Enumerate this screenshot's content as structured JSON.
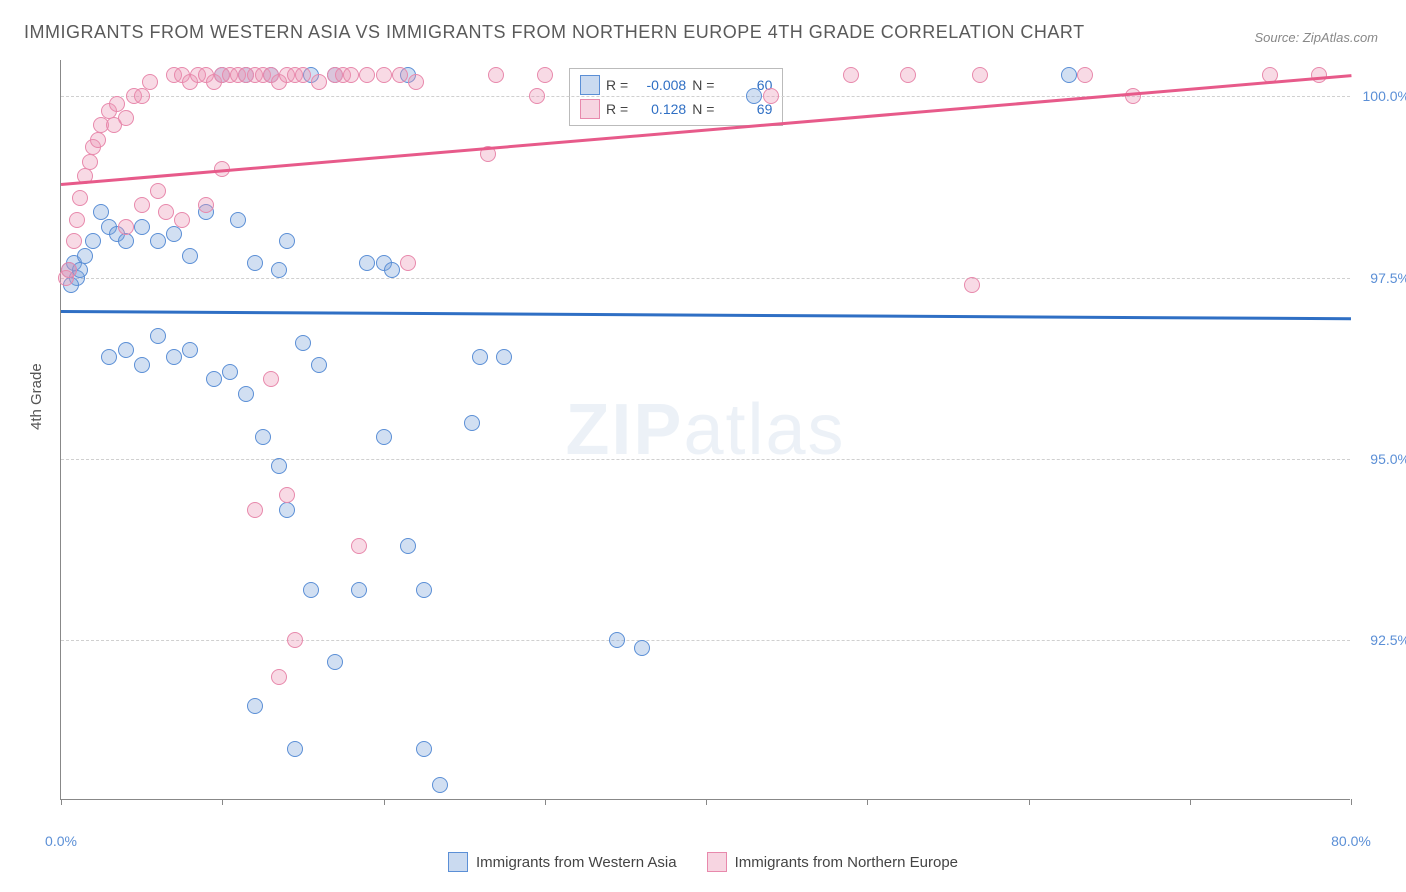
{
  "title": "IMMIGRANTS FROM WESTERN ASIA VS IMMIGRANTS FROM NORTHERN EUROPE 4TH GRADE CORRELATION CHART",
  "source": "Source: ZipAtlas.com",
  "ylabel": "4th Grade",
  "watermark_a": "ZIP",
  "watermark_b": "atlas",
  "chart": {
    "type": "scatter",
    "xlim": [
      0,
      80
    ],
    "ylim": [
      90.3,
      100.5
    ],
    "xticks": [
      0,
      10,
      20,
      30,
      40,
      50,
      60,
      70,
      80
    ],
    "xtick_labels_shown": {
      "0": "0.0%",
      "80": "80.0%"
    },
    "yticks": [
      92.5,
      95.0,
      97.5,
      100.0
    ],
    "ytick_labels": [
      "92.5%",
      "95.0%",
      "97.5%",
      "100.0%"
    ],
    "grid_color": "#d0d0d0",
    "background_color": "#ffffff",
    "marker_size": 16,
    "series": [
      {
        "name": "Immigrants from Western Asia",
        "color": "#5b8fd6",
        "fill": "rgba(123,163,217,0.35)",
        "r": "-0.008",
        "n": "60",
        "trend": {
          "y_at_x0": 97.05,
          "y_at_x80": 96.95
        },
        "points": [
          [
            0.5,
            97.6
          ],
          [
            0.8,
            97.7
          ],
          [
            1.0,
            97.5
          ],
          [
            1.2,
            97.6
          ],
          [
            1.5,
            97.8
          ],
          [
            0.6,
            97.4
          ],
          [
            2.0,
            98.0
          ],
          [
            2.5,
            98.4
          ],
          [
            3.0,
            98.2
          ],
          [
            3.5,
            98.1
          ],
          [
            4.0,
            98.0
          ],
          [
            5.0,
            98.2
          ],
          [
            6.0,
            98.0
          ],
          [
            7.0,
            98.1
          ],
          [
            8.0,
            97.8
          ],
          [
            9.0,
            98.4
          ],
          [
            10.0,
            100.3
          ],
          [
            11.0,
            98.3
          ],
          [
            11.5,
            100.3
          ],
          [
            12.0,
            97.7
          ],
          [
            13.0,
            100.3
          ],
          [
            13.5,
            97.6
          ],
          [
            14.0,
            98.0
          ],
          [
            15.5,
            100.3
          ],
          [
            17.0,
            100.3
          ],
          [
            19.0,
            97.7
          ],
          [
            20.0,
            97.7
          ],
          [
            20.5,
            97.6
          ],
          [
            21.5,
            100.3
          ],
          [
            43.0,
            100.0
          ],
          [
            62.5,
            100.3
          ],
          [
            3.0,
            96.4
          ],
          [
            4.0,
            96.5
          ],
          [
            5.0,
            96.3
          ],
          [
            6.0,
            96.7
          ],
          [
            7.0,
            96.4
          ],
          [
            8.0,
            96.5
          ],
          [
            9.5,
            96.1
          ],
          [
            10.5,
            96.2
          ],
          [
            11.5,
            95.9
          ],
          [
            12.5,
            95.3
          ],
          [
            13.5,
            94.9
          ],
          [
            14.0,
            94.3
          ],
          [
            15.0,
            96.6
          ],
          [
            15.5,
            93.2
          ],
          [
            16.0,
            96.3
          ],
          [
            26.0,
            96.4
          ],
          [
            27.5,
            96.4
          ],
          [
            12.0,
            91.6
          ],
          [
            14.5,
            91.0
          ],
          [
            17.0,
            92.2
          ],
          [
            18.5,
            93.2
          ],
          [
            22.5,
            91.0
          ],
          [
            23.5,
            90.5
          ],
          [
            20.0,
            95.3
          ],
          [
            21.5,
            93.8
          ],
          [
            22.5,
            93.2
          ],
          [
            25.5,
            95.5
          ],
          [
            34.5,
            92.5
          ],
          [
            36.0,
            92.4
          ]
        ]
      },
      {
        "name": "Immigrants from Northern Europe",
        "color": "#e889ac",
        "fill": "rgba(236,150,180,0.35)",
        "r": "0.128",
        "n": "69",
        "trend": {
          "y_at_x0": 98.8,
          "y_at_x80": 100.3
        },
        "points": [
          [
            0.3,
            97.5
          ],
          [
            0.5,
            97.6
          ],
          [
            0.8,
            98.0
          ],
          [
            1.0,
            98.3
          ],
          [
            1.2,
            98.6
          ],
          [
            1.5,
            98.9
          ],
          [
            1.8,
            99.1
          ],
          [
            2.0,
            99.3
          ],
          [
            2.3,
            99.4
          ],
          [
            2.5,
            99.6
          ],
          [
            3.0,
            99.8
          ],
          [
            3.3,
            99.6
          ],
          [
            3.5,
            99.9
          ],
          [
            4.0,
            99.7
          ],
          [
            4.5,
            100.0
          ],
          [
            5.0,
            100.0
          ],
          [
            5.5,
            100.2
          ],
          [
            6.0,
            98.7
          ],
          [
            7.0,
            100.3
          ],
          [
            7.5,
            100.3
          ],
          [
            8.0,
            100.2
          ],
          [
            8.5,
            100.3
          ],
          [
            9.0,
            100.3
          ],
          [
            9.5,
            100.2
          ],
          [
            10.0,
            100.3
          ],
          [
            10.5,
            100.3
          ],
          [
            11.0,
            100.3
          ],
          [
            11.5,
            100.3
          ],
          [
            12.0,
            100.3
          ],
          [
            12.5,
            100.3
          ],
          [
            13.0,
            100.3
          ],
          [
            13.5,
            100.2
          ],
          [
            14.0,
            100.3
          ],
          [
            14.5,
            100.3
          ],
          [
            15.0,
            100.3
          ],
          [
            16.0,
            100.2
          ],
          [
            17.0,
            100.3
          ],
          [
            17.5,
            100.3
          ],
          [
            18.0,
            100.3
          ],
          [
            19.0,
            100.3
          ],
          [
            20.0,
            100.3
          ],
          [
            21.0,
            100.3
          ],
          [
            22.0,
            100.2
          ],
          [
            26.5,
            99.2
          ],
          [
            27.0,
            100.3
          ],
          [
            29.5,
            100.0
          ],
          [
            30.0,
            100.3
          ],
          [
            4.0,
            98.2
          ],
          [
            5.0,
            98.5
          ],
          [
            6.5,
            98.4
          ],
          [
            7.5,
            98.3
          ],
          [
            9.0,
            98.5
          ],
          [
            10.0,
            99.0
          ],
          [
            21.5,
            97.7
          ],
          [
            12.0,
            94.3
          ],
          [
            13.0,
            96.1
          ],
          [
            13.5,
            92.0
          ],
          [
            14.0,
            94.5
          ],
          [
            14.5,
            92.5
          ],
          [
            18.5,
            93.8
          ],
          [
            44.0,
            100.0
          ],
          [
            49.0,
            100.3
          ],
          [
            52.5,
            100.3
          ],
          [
            56.5,
            97.4
          ],
          [
            57.0,
            100.3
          ],
          [
            63.5,
            100.3
          ],
          [
            66.5,
            100.0
          ],
          [
            75.0,
            100.3
          ],
          [
            78.0,
            100.3
          ]
        ]
      }
    ]
  },
  "stats_labels": {
    "r": "R =",
    "n": "N ="
  },
  "legend": {
    "items": [
      {
        "label": "Immigrants from Western Asia",
        "class": "blue"
      },
      {
        "label": "Immigrants from Northern Europe",
        "class": "pink"
      }
    ]
  }
}
